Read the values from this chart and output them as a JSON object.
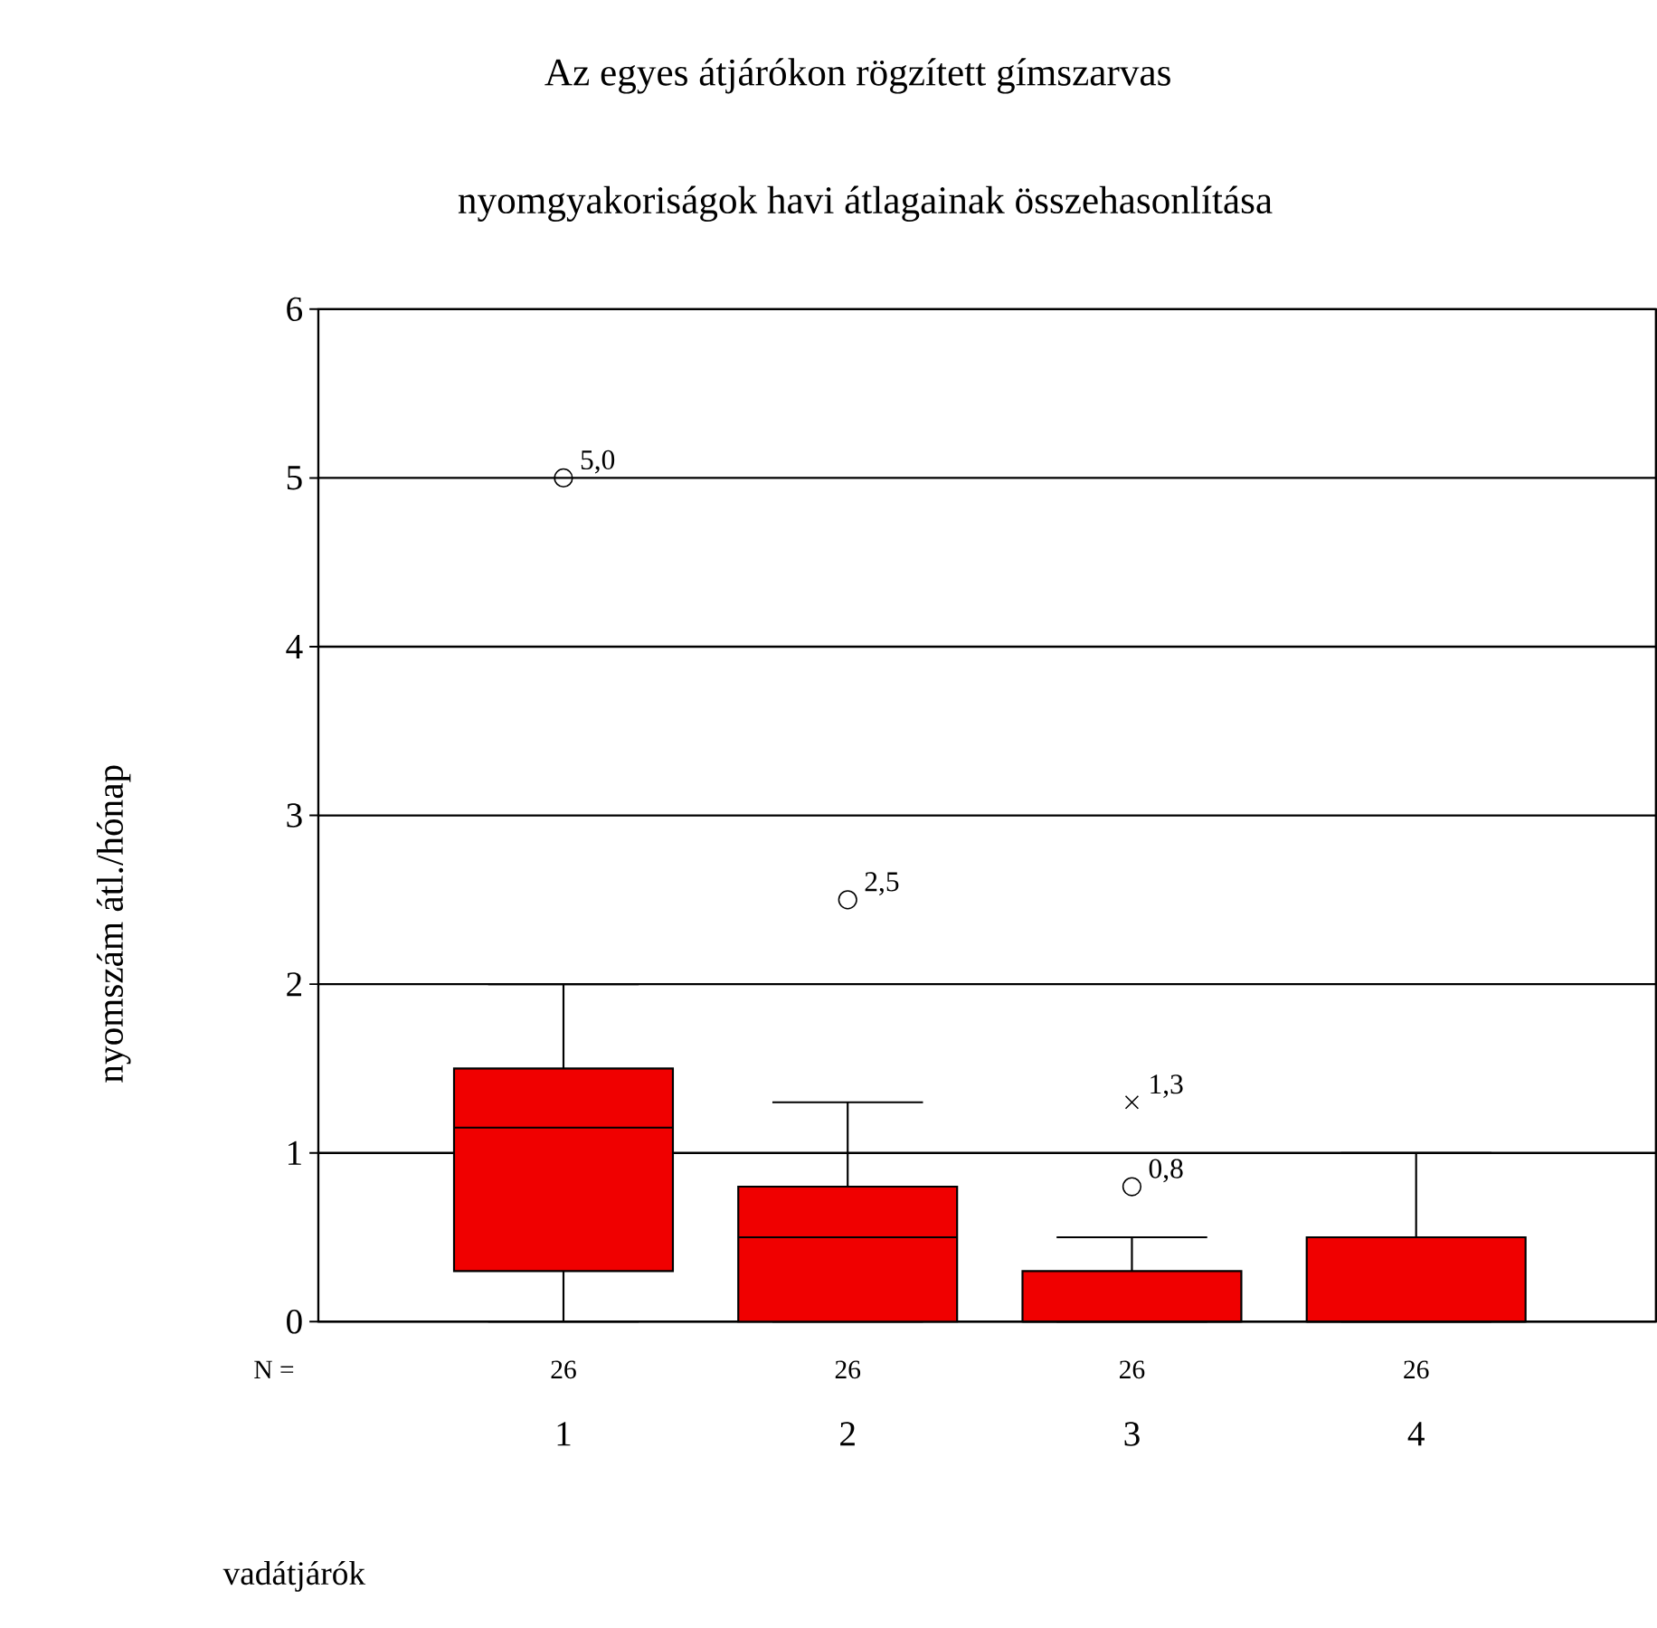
{
  "chart_data": {
    "type": "box",
    "title": "Az egyes átjárókon rögzített gímszarvas",
    "subtitle": "nyomgyakoriságok havi átlagainak összehasonlítása",
    "xlabel": "vadátjárók",
    "ylabel": "nyomszám átl./hónap",
    "categories": [
      "1",
      "2",
      "3",
      "4"
    ],
    "color": "#f00000",
    "boxes": [
      {
        "low": 0,
        "q1": 0.3,
        "median": 1.15,
        "q3": 1.5,
        "high": 2,
        "outliers": [
          5.0
        ]
      },
      {
        "low": 0,
        "q1": 0,
        "median": 0.5,
        "q3": 0.8,
        "high": 1.3,
        "outliers": [
          2.5
        ]
      },
      {
        "low": 0,
        "q1": 0,
        "median": 0,
        "q3": 0.3,
        "high": 0.5,
        "outliers": [
          0.8
        ]
      },
      {
        "low": 0,
        "q1": 0,
        "median": 0,
        "q3": 0.5,
        "high": 1
      }
    ],
    "series": [
      {
        "type": "scatter",
        "marker": "cross",
        "color": "#000000",
        "x": [
          "3"
        ],
        "values": [
          1.3
        ]
      }
    ],
    "ylim": [
      0,
      6
    ],
    "yticks": [
      0,
      1,
      2,
      3,
      4,
      5,
      6
    ],
    "grid": "y",
    "annotations": [
      "5,0",
      "2,5",
      "0,8",
      "1,3",
      "N =",
      "26",
      "26",
      "26",
      "26"
    ]
  }
}
